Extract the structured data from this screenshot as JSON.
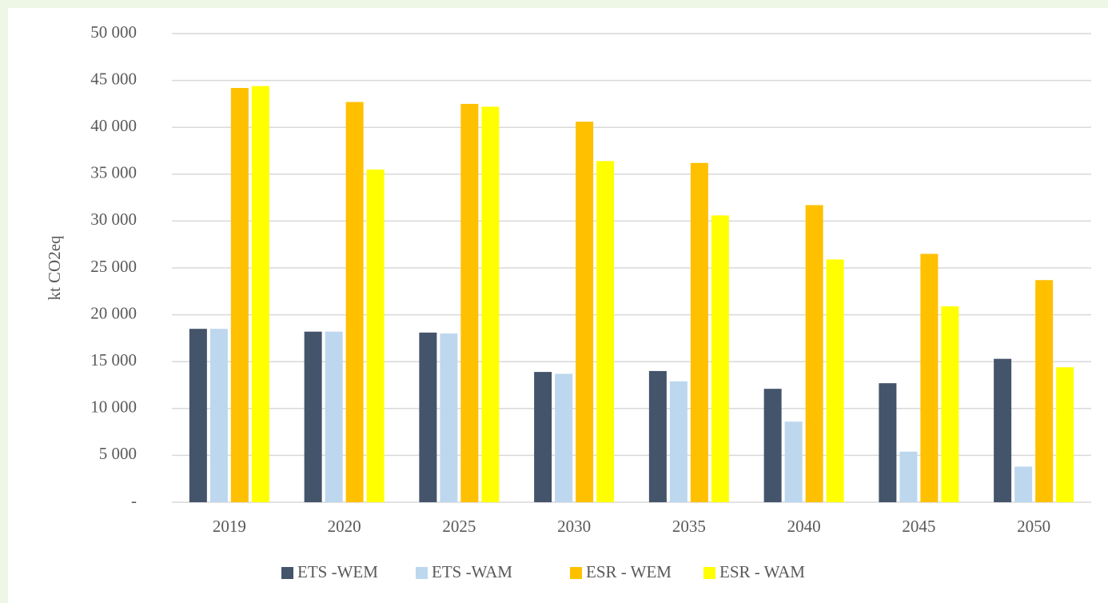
{
  "chart_data": {
    "type": "bar",
    "y_label": "kt CO2eq",
    "categories": [
      "2019",
      "2020",
      "2025",
      "2030",
      "2035",
      "2040",
      "2045",
      "2050"
    ],
    "series": [
      {
        "name": "ETS -WEM",
        "color": "#44546a",
        "values": [
          18500,
          18200,
          18100,
          13900,
          14000,
          12100,
          12700,
          15300
        ]
      },
      {
        "name": "ETS -WAM",
        "color": "#bdd7ee",
        "values": [
          18500,
          18200,
          18000,
          13700,
          12900,
          8600,
          5400,
          3800
        ]
      },
      {
        "name": "ESR - WEM",
        "color": "#ffc000",
        "values": [
          44200,
          42700,
          42500,
          40600,
          36200,
          31700,
          26500,
          23700
        ]
      },
      {
        "name": "ESR - WAM",
        "color": "#ffff00",
        "values": [
          44400,
          35500,
          42200,
          36400,
          30600,
          25900,
          20900,
          14400
        ]
      }
    ],
    "ylim": [
      0,
      50000
    ],
    "yticks": [
      {
        "value": 0,
        "label": "-"
      },
      {
        "value": 5000,
        "label": "5 000"
      },
      {
        "value": 10000,
        "label": "10 000"
      },
      {
        "value": 15000,
        "label": "15 000"
      },
      {
        "value": 20000,
        "label": "20 000"
      },
      {
        "value": 25000,
        "label": "25 000"
      },
      {
        "value": 30000,
        "label": "30 000"
      },
      {
        "value": 35000,
        "label": "35 000"
      },
      {
        "value": 40000,
        "label": "40 000"
      },
      {
        "value": 45000,
        "label": "45 000"
      },
      {
        "value": 50000,
        "label": "50 000"
      }
    ],
    "grid": true,
    "legend": "bottom"
  }
}
